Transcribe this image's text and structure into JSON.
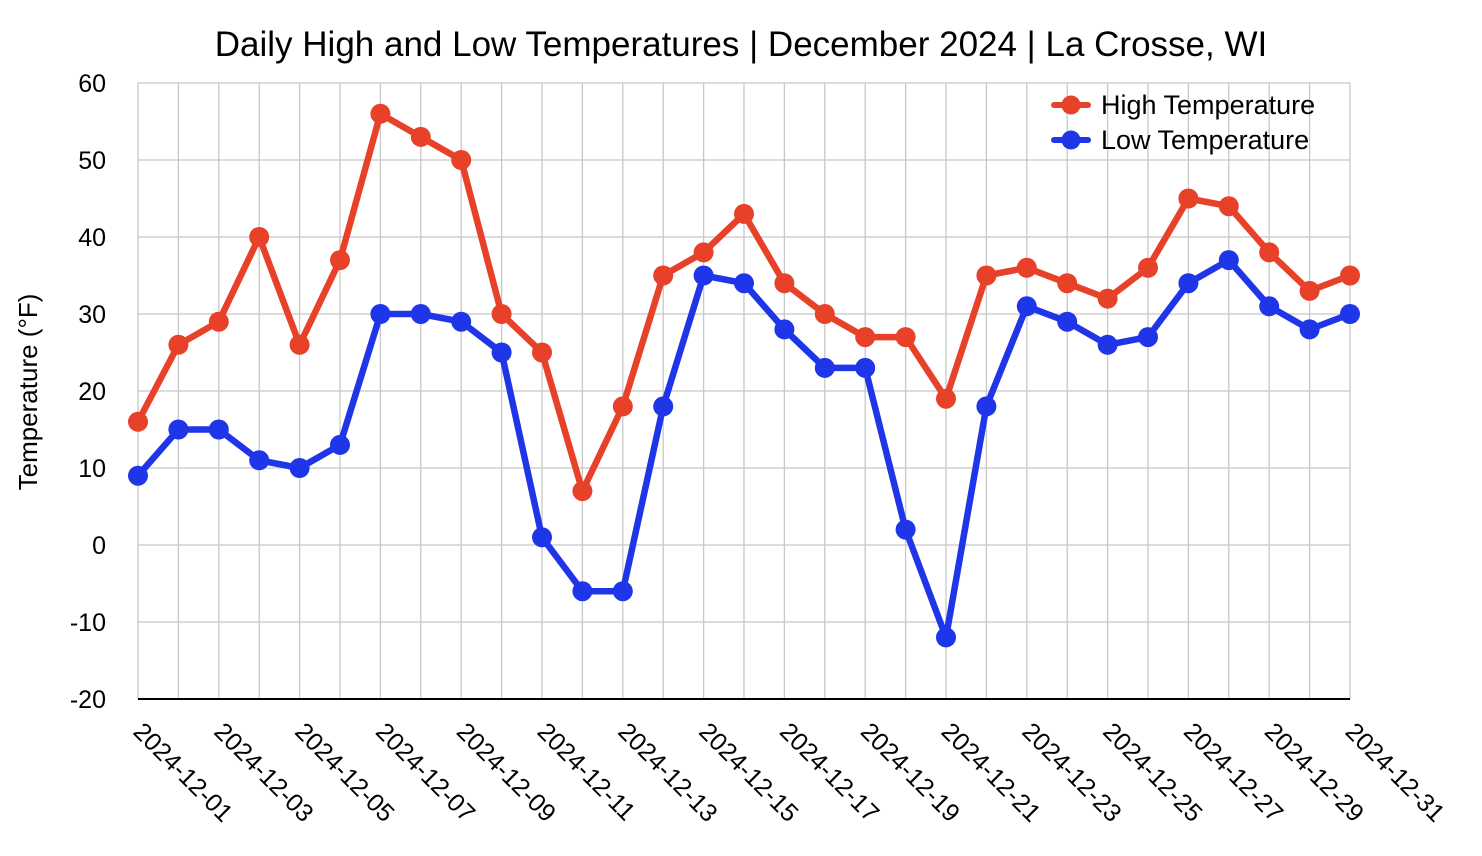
{
  "chart_data": {
    "type": "line",
    "title": "Daily High and Low Temperatures | December 2024 | La Crosse, WI",
    "xlabel": "",
    "ylabel": "Temperature (°F)",
    "ylim": [
      -20,
      60
    ],
    "yticks": [
      -20,
      -10,
      0,
      10,
      20,
      30,
      40,
      50,
      60
    ],
    "grid": true,
    "legend_position": "top-right",
    "x": [
      "2024-12-01",
      "2024-12-02",
      "2024-12-03",
      "2024-12-04",
      "2024-12-05",
      "2024-12-06",
      "2024-12-07",
      "2024-12-08",
      "2024-12-09",
      "2024-12-10",
      "2024-12-11",
      "2024-12-12",
      "2024-12-13",
      "2024-12-14",
      "2024-12-15",
      "2024-12-16",
      "2024-12-17",
      "2024-12-18",
      "2024-12-19",
      "2024-12-20",
      "2024-12-21",
      "2024-12-22",
      "2024-12-23",
      "2024-12-24",
      "2024-12-25",
      "2024-12-26",
      "2024-12-27",
      "2024-12-28",
      "2024-12-29",
      "2024-12-30",
      "2024-12-31"
    ],
    "xtick_labels": [
      "2024-12-01",
      "2024-12-03",
      "2024-12-05",
      "2024-12-07",
      "2024-12-09",
      "2024-12-11",
      "2024-12-13",
      "2024-12-15",
      "2024-12-17",
      "2024-12-19",
      "2024-12-21",
      "2024-12-23",
      "2024-12-25",
      "2024-12-27",
      "2024-12-29",
      "2024-12-31"
    ],
    "series": [
      {
        "name": "High Temperature",
        "color": "#e8412a",
        "values": [
          16,
          26,
          29,
          40,
          26,
          37,
          56,
          53,
          50,
          30,
          25,
          7,
          18,
          35,
          38,
          43,
          34,
          30,
          27,
          27,
          19,
          35,
          36,
          34,
          32,
          36,
          45,
          44,
          38,
          33,
          35
        ]
      },
      {
        "name": "Low Temperature",
        "color": "#1f35e8",
        "values": [
          9,
          15,
          15,
          11,
          10,
          13,
          30,
          30,
          29,
          25,
          1,
          -6,
          -6,
          18,
          35,
          34,
          28,
          23,
          23,
          2,
          -12,
          18,
          31,
          29,
          26,
          27,
          34,
          37,
          31,
          28,
          30
        ]
      }
    ]
  }
}
